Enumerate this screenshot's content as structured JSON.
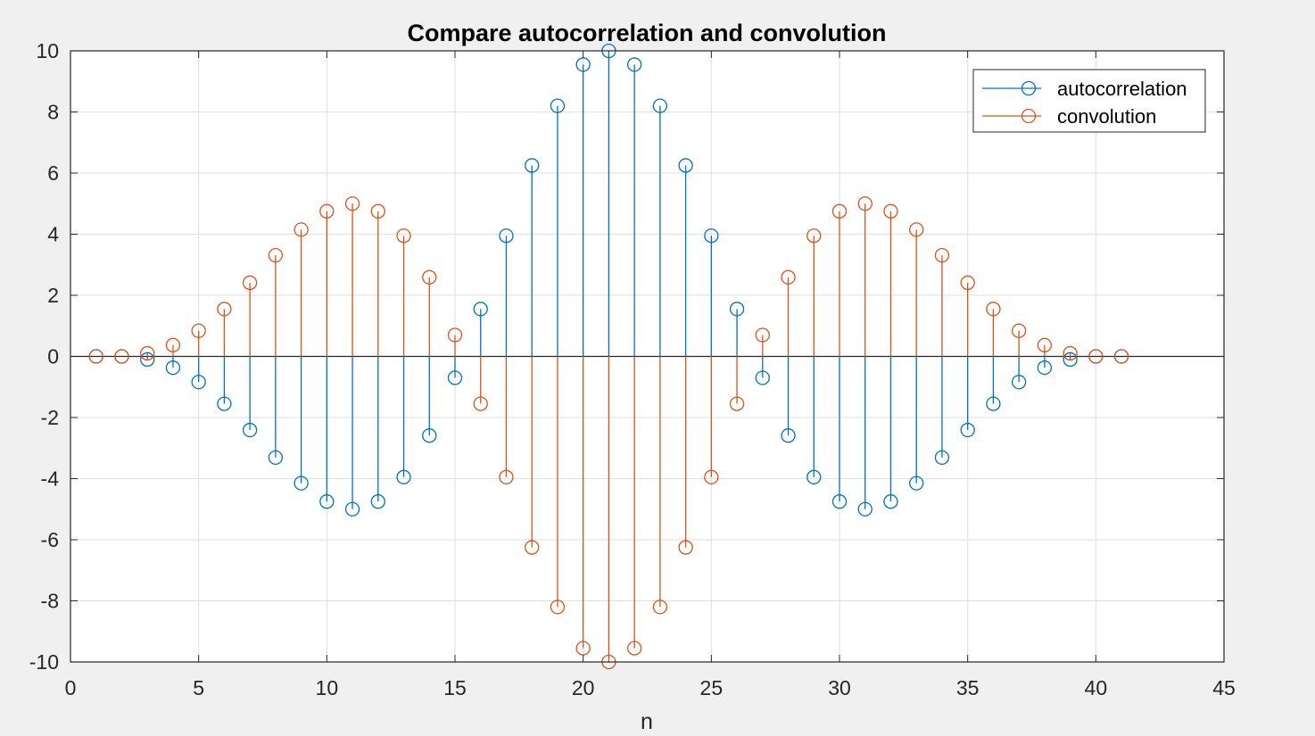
{
  "chart_data": {
    "type": "stem",
    "title": "Compare autocorrelation and convolution",
    "xlabel": "n",
    "ylabel": "",
    "xlim": [
      0,
      45
    ],
    "ylim": [
      -10,
      10
    ],
    "xticks": [
      0,
      5,
      10,
      15,
      20,
      25,
      30,
      35,
      40,
      45
    ],
    "yticks": [
      -10,
      -8,
      -6,
      -4,
      -2,
      0,
      2,
      4,
      6,
      8,
      10
    ],
    "grid": true,
    "legend_position": "top-right",
    "x": [
      1,
      2,
      3,
      4,
      5,
      6,
      7,
      8,
      9,
      10,
      11,
      12,
      13,
      14,
      15,
      16,
      17,
      18,
      19,
      20,
      21,
      22,
      23,
      24,
      25,
      26,
      27,
      28,
      29,
      30,
      31,
      32,
      33,
      34,
      35,
      36,
      37,
      38,
      39,
      40,
      41
    ],
    "series": [
      {
        "name": "autocorrelation",
        "color": "#0072BD",
        "values": [
          0,
          0,
          -0.1,
          -0.37,
          -0.84,
          -1.55,
          -2.41,
          -3.31,
          -4.15,
          -4.75,
          -5.0,
          -4.75,
          -3.95,
          -2.59,
          -0.7,
          1.55,
          3.95,
          6.25,
          8.2,
          9.55,
          10.0,
          9.55,
          8.2,
          6.25,
          3.95,
          1.55,
          -0.7,
          -2.59,
          -3.95,
          -4.75,
          -5.0,
          -4.75,
          -4.15,
          -3.31,
          -2.41,
          -1.55,
          -0.84,
          -0.37,
          -0.1,
          0,
          0
        ]
      },
      {
        "name": "convolution",
        "color": "#D95319",
        "values": [
          0,
          0,
          0.1,
          0.37,
          0.84,
          1.55,
          2.41,
          3.31,
          4.15,
          4.75,
          5.0,
          4.75,
          3.95,
          2.59,
          0.7,
          -1.55,
          -3.95,
          -6.25,
          -8.2,
          -9.55,
          -10.0,
          -9.55,
          -8.2,
          -6.25,
          -3.95,
          -1.55,
          0.7,
          2.59,
          3.95,
          4.75,
          5.0,
          4.75,
          4.15,
          3.31,
          2.41,
          1.55,
          0.84,
          0.37,
          0.1,
          0,
          0
        ]
      }
    ]
  }
}
